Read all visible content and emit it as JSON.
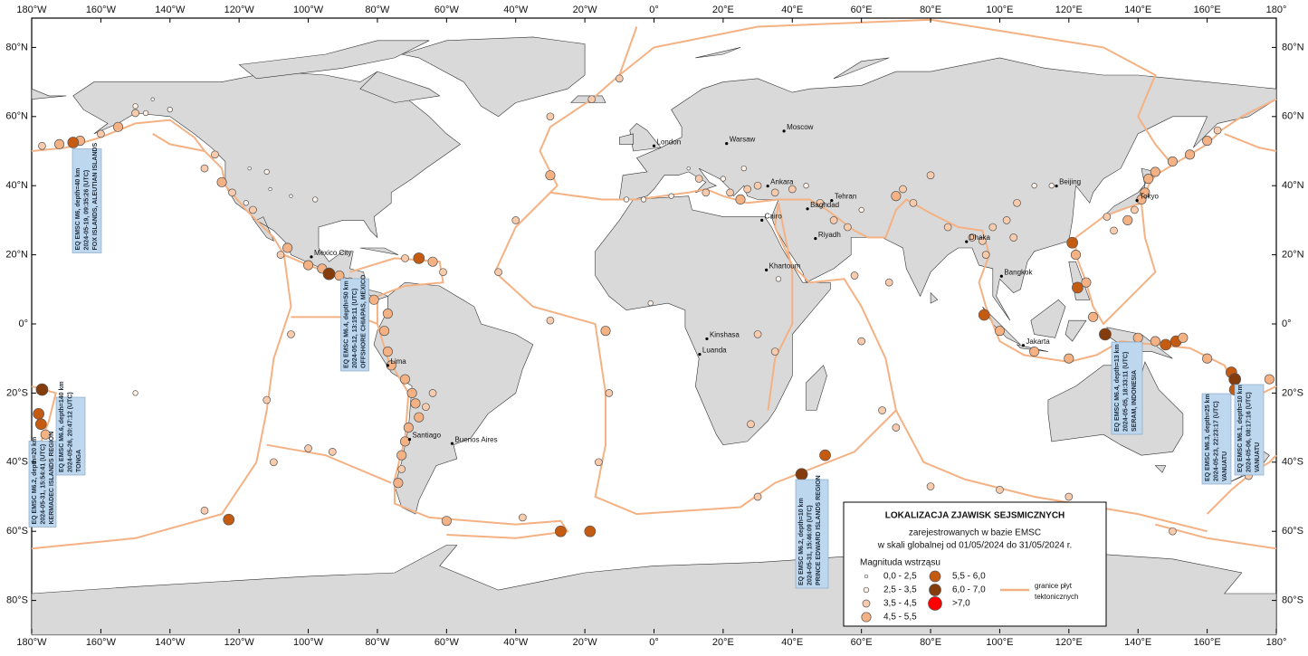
{
  "map": {
    "lon_ticks": [
      {
        "value": -180,
        "label": "180°W"
      },
      {
        "value": -160,
        "label": "160°W"
      },
      {
        "value": -140,
        "label": "140°W"
      },
      {
        "value": -120,
        "label": "120°W"
      },
      {
        "value": -100,
        "label": "100°W"
      },
      {
        "value": -80,
        "label": "80°W"
      },
      {
        "value": -60,
        "label": "60°W"
      },
      {
        "value": -40,
        "label": "40°W"
      },
      {
        "value": -20,
        "label": "20°W"
      },
      {
        "value": 0,
        "label": "0°"
      },
      {
        "value": 20,
        "label": "20°E"
      },
      {
        "value": 40,
        "label": "40°E"
      },
      {
        "value": 60,
        "label": "60°E"
      },
      {
        "value": 80,
        "label": "80°E"
      },
      {
        "value": 100,
        "label": "100°E"
      },
      {
        "value": 120,
        "label": "120°E"
      },
      {
        "value": 140,
        "label": "140°E"
      },
      {
        "value": 160,
        "label": "160°E"
      },
      {
        "value": 180,
        "label": "180°"
      }
    ],
    "lat_ticks": [
      {
        "value": 80,
        "label": "80°N"
      },
      {
        "value": 60,
        "label": "60°N"
      },
      {
        "value": 40,
        "label": "40°N"
      },
      {
        "value": 20,
        "label": "20°N"
      },
      {
        "value": 0,
        "label": "0°"
      },
      {
        "value": -20,
        "label": "20°S"
      },
      {
        "value": -40,
        "label": "40°S"
      },
      {
        "value": -60,
        "label": "60°S"
      },
      {
        "value": -80,
        "label": "80°S"
      }
    ],
    "cities": [
      {
        "name": "London",
        "lon": 0,
        "lat": 51.5
      },
      {
        "name": "Warsaw",
        "lon": 21,
        "lat": 52.2
      },
      {
        "name": "Moscow",
        "lon": 37.6,
        "lat": 55.8
      },
      {
        "name": "Ankara",
        "lon": 32.9,
        "lat": 39.9
      },
      {
        "name": "Tehran",
        "lon": 51.4,
        "lat": 35.7
      },
      {
        "name": "Baghdad",
        "lon": 44.4,
        "lat": 33.3
      },
      {
        "name": "Cairo",
        "lon": 31.2,
        "lat": 30
      },
      {
        "name": "Riyadh",
        "lon": 46.7,
        "lat": 24.7
      },
      {
        "name": "Khartoum",
        "lon": 32.5,
        "lat": 15.6
      },
      {
        "name": "Kinshasa",
        "lon": 15.3,
        "lat": -4.3
      },
      {
        "name": "Luanda",
        "lon": 13.2,
        "lat": -8.8
      },
      {
        "name": "Mexico City",
        "lon": -99.1,
        "lat": 19.4
      },
      {
        "name": "Lima",
        "lon": -77,
        "lat": -12
      },
      {
        "name": "Santiago",
        "lon": -70.7,
        "lat": -33.4
      },
      {
        "name": "Buenos Aires",
        "lon": -58.4,
        "lat": -34.6
      },
      {
        "name": "Dhaka",
        "lon": 90.4,
        "lat": 23.8
      },
      {
        "name": "Beijing",
        "lon": 116.4,
        "lat": 39.9
      },
      {
        "name": "Tokyo",
        "lon": 139.7,
        "lat": 35.7
      },
      {
        "name": "Bangkok",
        "lon": 100.5,
        "lat": 13.8
      },
      {
        "name": "Jakarta",
        "lon": 106.8,
        "lat": -6.2
      }
    ],
    "annotations": [
      {
        "lines": [
          "EQ EMSC M6, depth=40 km",
          "2024-05-19, 09:35:26 (UTC)",
          "FOX ISLANDS, ALEUTIAN ISLANDS"
        ]
      },
      {
        "lines": [
          "EQ EMSC M6.2, depth=20 km",
          "2024-05-31, 15:54:41 (UTC)",
          "KERMADEC ISLANDS REGION"
        ]
      },
      {
        "lines": [
          "EQ EMSC M6.6, depth=140 km",
          "2024-05-26, 20:47:12 (UTC)",
          "TONGA"
        ]
      },
      {
        "lines": [
          "EQ EMSC M6.4, depth=50 km",
          "2024-05-12, 13:19:11 (UTC)",
          "OFFSHORE CHIAPAS, MEXICO"
        ]
      },
      {
        "lines": [
          "EQ EMSC M6.2, depth=10 km",
          "2024-05-31, 15:46:09 (UTC)",
          "PRINCE EDWARD ISLANDS REGION"
        ]
      },
      {
        "lines": [
          "EQ EMSC M6.4, depth=13 km",
          "2024-05-05, 18:33:11 (UTC)",
          "SERAM, INDONESIA"
        ]
      },
      {
        "lines": [
          "EQ EMSC M6.3, depth=25 km",
          "2024-05-23, 22:23:17 (UTC)",
          "VANUATU"
        ]
      },
      {
        "lines": [
          "EQ EMSC M6.1, depth=10 km",
          "2024-05-06, 08:17:16 (UTC)",
          "VANUATU"
        ]
      }
    ],
    "legend": {
      "title": "LOKALIZACJA ZJAWISK SEJSMICZNYCH",
      "subtitle": [
        "zarejestrowanych w bazie EMSC",
        "w skali globalnej od 01/05/2024 do 31/05/2024 r."
      ],
      "magnitude_title": "Magnituda wstrząsu",
      "classes": [
        {
          "label": "0,0 - 2,5",
          "color": "#ffffff"
        },
        {
          "label": "2,5 - 3,5",
          "color": "#fdf1e8"
        },
        {
          "label": "3,5 - 4,5",
          "color": "#f8cbad"
        },
        {
          "label": "4,5 - 5,5",
          "color": "#f4b183"
        },
        {
          "label": "5,5 - 6,0",
          "color": "#c55a11"
        },
        {
          "label": "6,0 - 7,0",
          "color": "#843c0c"
        },
        {
          "label": ">7,0",
          "color": "#ff0000"
        }
      ],
      "plates_label": [
        "granice płyt",
        "tektonicznych"
      ],
      "plates_color": "#f4b183"
    },
    "earthquakes": {
      "lon": [
        -177,
        -172,
        -166,
        -160,
        -155,
        -150,
        -147,
        -168,
        -150,
        -145,
        -140,
        -122,
        -118,
        -116,
        -125,
        -127,
        -112,
        -111,
        -105,
        -98,
        -117,
        -106,
        -100,
        -96,
        -91,
        -88,
        -86,
        -84,
        -94,
        -81,
        -68,
        -64,
        -61,
        -72,
        -77,
        -78,
        -77,
        -76,
        -72,
        -70,
        -69,
        -68,
        -71,
        -72,
        -73,
        -73,
        -74,
        -66,
        -64,
        -60,
        -27,
        -18.5,
        -30,
        -40,
        -45,
        -30,
        -14,
        -13,
        -16,
        -30,
        -18,
        -10,
        13,
        15,
        22,
        25,
        27,
        30,
        35,
        40,
        20,
        10,
        26,
        44,
        48,
        52,
        56,
        60,
        -8,
        -3,
        5,
        70,
        72,
        75,
        80,
        85,
        92,
        95,
        98,
        102,
        105,
        110,
        115,
        104,
        96,
        121,
        122,
        125,
        122.5,
        127,
        120,
        110,
        100,
        95.5,
        130.5,
        140,
        145,
        148,
        151,
        153,
        160,
        167,
        168,
        168,
        178,
        -177,
        -178,
        -177.3,
        -176,
        175,
        172,
        141,
        142,
        143,
        145,
        150,
        155,
        160,
        163,
        139,
        131,
        133,
        137,
        66,
        70,
        60,
        68,
        58,
        49.5,
        42.7,
        30,
        80,
        100,
        120,
        150,
        -130,
        -123,
        -110,
        -112,
        -105,
        -108,
        -130,
        -150,
        -100,
        -93,
        -38,
        30,
        35,
        28,
        36,
        -1
      ],
      "lat": [
        51.5,
        52,
        53,
        55,
        57,
        61,
        61,
        52.5,
        63,
        65,
        62,
        38,
        35,
        33,
        41,
        49,
        44,
        39,
        37,
        36,
        45,
        22,
        17,
        16,
        14,
        12,
        11,
        9,
        14.5,
        7,
        19,
        18,
        15,
        19,
        3,
        -2,
        -8,
        -12,
        -16,
        -20,
        -23,
        -27,
        -30,
        -34,
        -38,
        -42,
        -46,
        -24,
        -20,
        -57,
        -60,
        -60,
        43,
        30,
        15,
        1,
        -2,
        -20,
        -40,
        60,
        65,
        71,
        42,
        38,
        38,
        36,
        39,
        40,
        38,
        39,
        42,
        45,
        45,
        40,
        35,
        30,
        28,
        33,
        36,
        36,
        37,
        37,
        39,
        35,
        43,
        28,
        25,
        24,
        28,
        30,
        35,
        40,
        40,
        25,
        20,
        23.5,
        20,
        12,
        10.5,
        2,
        -10,
        -8,
        -2,
        2.6,
        -3,
        -4,
        -5,
        -6,
        -5,
        -4,
        -10,
        -14,
        -16,
        -19,
        -16,
        -19,
        -26,
        -29,
        -32,
        -40,
        -44,
        36,
        38,
        42,
        44,
        47,
        49,
        53,
        56,
        33,
        31,
        27,
        30,
        -25,
        -30,
        -5,
        12,
        14,
        -38,
        -43.5,
        -50,
        -47,
        -48,
        -50,
        -60,
        -54,
        -56.6,
        -40,
        -22,
        -3,
        20,
        45,
        -20,
        -36,
        -37,
        -56,
        -3,
        -8,
        -29,
        13,
        6
      ],
      "class": [
        2,
        3,
        3,
        2,
        3,
        2,
        1,
        4,
        1,
        0,
        1,
        2,
        1,
        2,
        3,
        2,
        1,
        0,
        0,
        1,
        0,
        3,
        3,
        3,
        3,
        3,
        3,
        2,
        5,
        3,
        4,
        3,
        2,
        2,
        3,
        3,
        3,
        3,
        3,
        3,
        3,
        3,
        3,
        3,
        3,
        2,
        3,
        2,
        2,
        3,
        4,
        4,
        3,
        2,
        2,
        2,
        3,
        2,
        2,
        2,
        2,
        2,
        2,
        2,
        2,
        3,
        2,
        2,
        2,
        2,
        1,
        0,
        1,
        1,
        2,
        2,
        2,
        1,
        1,
        1,
        1,
        3,
        2,
        2,
        2,
        2,
        2,
        2,
        2,
        2,
        2,
        1,
        1,
        2,
        2,
        4,
        3,
        3,
        4,
        3,
        3,
        3,
        3,
        4,
        5,
        3,
        3,
        4,
        4,
        3,
        3,
        4,
        5,
        4,
        3,
        5,
        4,
        4,
        3,
        3,
        2,
        3,
        3,
        3,
        3,
        3,
        3,
        3,
        2,
        2,
        2,
        2,
        3,
        2,
        2,
        2,
        2,
        2,
        4,
        5,
        2,
        2,
        2,
        2,
        2,
        2,
        4,
        2,
        2,
        2,
        2,
        2,
        1,
        2,
        2,
        2,
        2,
        2,
        2,
        1,
        1
      ]
    }
  }
}
